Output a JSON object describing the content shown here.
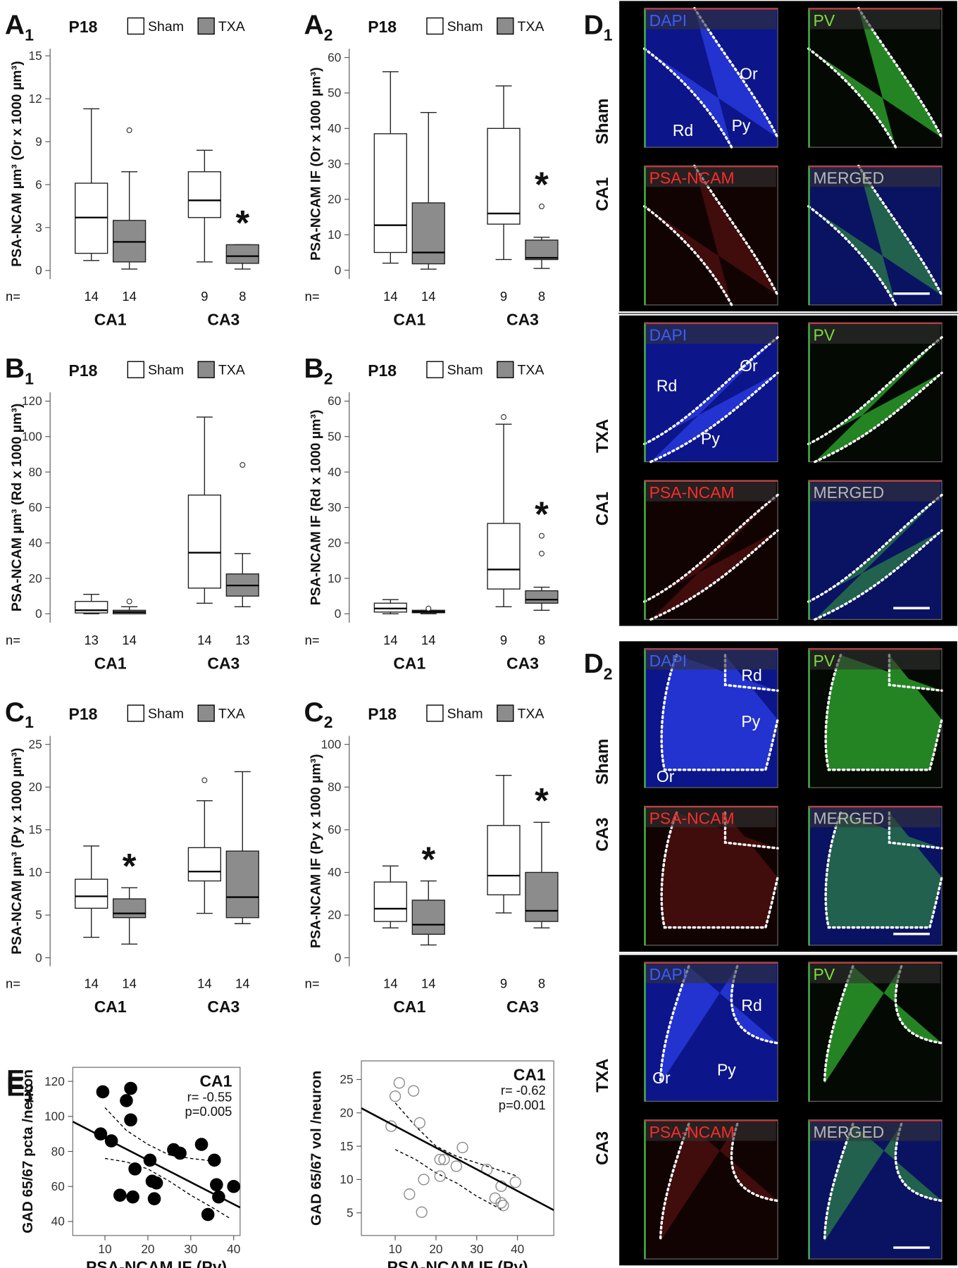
{
  "chart_data": [
    {
      "type": "box",
      "panel": [
        "A",
        "1"
      ],
      "timepoint": "P18",
      "ylabel": "PSA-NCAM µm³ (Or x 1000 µm³)",
      "ylim": [
        -0.6,
        15.5
      ],
      "yticks": [
        0,
        3,
        6,
        9,
        12,
        15
      ],
      "n_label": "n=",
      "categories": [
        "CA1",
        "CA3"
      ],
      "series": [
        {
          "name": "Sham",
          "color": "#ffffff",
          "n": [
            14,
            9
          ],
          "min": [
            0.7,
            0.6
          ],
          "q1": [
            1.2,
            3.7
          ],
          "median": [
            3.7,
            4.9
          ],
          "q3": [
            6.1,
            6.9
          ],
          "max": [
            11.3,
            8.4
          ],
          "outliers": [
            [],
            []
          ]
        },
        {
          "name": "TXA",
          "color": "#8c8c8c",
          "n": [
            14,
            8
          ],
          "min": [
            0.1,
            0.1
          ],
          "q1": [
            0.6,
            0.5
          ],
          "median": [
            2.0,
            1.0
          ],
          "q3": [
            3.5,
            1.8
          ],
          "max": [
            6.9,
            1.8
          ],
          "outliers": [
            [
              9.8
            ],
            []
          ],
          "significance": [
            null,
            "*"
          ]
        }
      ]
    },
    {
      "type": "box",
      "panel": [
        "A",
        "2"
      ],
      "timepoint": "P18",
      "ylabel": "PSA-NCAM IF (Or x 1000 µm³)",
      "ylim": [
        -2.5,
        62.5
      ],
      "yticks": [
        0,
        10,
        20,
        30,
        40,
        50,
        60
      ],
      "n_label": "n=",
      "categories": [
        "CA1",
        "CA3"
      ],
      "series": [
        {
          "name": "Sham",
          "color": "#ffffff",
          "n": [
            14,
            9
          ],
          "min": [
            2,
            3
          ],
          "q1": [
            5,
            13
          ],
          "median": [
            12.7,
            16
          ],
          "q3": [
            38.5,
            40
          ],
          "max": [
            56,
            52
          ],
          "outliers": [
            [],
            []
          ]
        },
        {
          "name": "TXA",
          "color": "#8c8c8c",
          "n": [
            14,
            8
          ],
          "min": [
            0.3,
            0.5
          ],
          "q1": [
            1.8,
            3
          ],
          "median": [
            5,
            3.5
          ],
          "q3": [
            19,
            8.5
          ],
          "max": [
            44.5,
            9.3
          ],
          "outliers": [
            [],
            [
              18
            ]
          ],
          "significance": [
            null,
            "*"
          ]
        }
      ]
    },
    {
      "type": "box",
      "panel": [
        "B",
        "1"
      ],
      "timepoint": "P18",
      "ylabel": "PSA-NCAM µm³ (Rd x 1000 µm³)",
      "ylim": [
        -5,
        125
      ],
      "yticks": [
        0,
        20,
        40,
        60,
        80,
        100,
        120
      ],
      "n_label": "n=",
      "categories": [
        "CA1",
        "CA3"
      ],
      "series": [
        {
          "name": "Sham",
          "color": "#ffffff",
          "n": [
            13,
            14
          ],
          "min": [
            0,
            6
          ],
          "q1": [
            0.5,
            14.5
          ],
          "median": [
            2,
            34.5
          ],
          "q3": [
            7,
            67
          ],
          "max": [
            11,
            111
          ],
          "outliers": [
            [],
            []
          ]
        },
        {
          "name": "TXA",
          "color": "#8c8c8c",
          "n": [
            14,
            13
          ],
          "min": [
            0,
            4
          ],
          "q1": [
            0,
            10
          ],
          "median": [
            1,
            16
          ],
          "q3": [
            2,
            22.5
          ],
          "max": [
            4,
            34
          ],
          "outliers": [
            [
              7
            ],
            [
              84
            ]
          ]
        }
      ]
    },
    {
      "type": "box",
      "panel": [
        "B",
        "2"
      ],
      "timepoint": "P18",
      "ylabel": "PSA-NCAM IF (Rd x 1000 µm³)",
      "ylim": [
        -2.5,
        62.5
      ],
      "yticks": [
        0,
        10,
        20,
        30,
        40,
        50,
        60
      ],
      "n_label": "n=",
      "categories": [
        "CA1",
        "CA3"
      ],
      "series": [
        {
          "name": "Sham",
          "color": "#ffffff",
          "n": [
            14,
            9
          ],
          "min": [
            0,
            2
          ],
          "q1": [
            0.5,
            7
          ],
          "median": [
            1.5,
            12.5
          ],
          "q3": [
            3,
            25.5
          ],
          "max": [
            4,
            53.5
          ],
          "outliers": [
            [],
            [
              55.5
            ]
          ]
        },
        {
          "name": "TXA",
          "color": "#8c8c8c",
          "n": [
            14,
            8
          ],
          "min": [
            0,
            1
          ],
          "q1": [
            0.3,
            3
          ],
          "median": [
            0.6,
            4
          ],
          "q3": [
            1,
            6.5
          ],
          "max": [
            1,
            7.5
          ],
          "outliers": [
            [
              1.5
            ],
            [
              22,
              17
            ]
          ],
          "significance": [
            null,
            "*"
          ]
        }
      ]
    },
    {
      "type": "box",
      "panel": [
        "C",
        "1"
      ],
      "timepoint": "P18",
      "ylabel": "PSA-NCAM µm³ (Py x 1000 µm³)",
      "ylim": [
        -1,
        26
      ],
      "yticks": [
        0,
        5,
        10,
        15,
        20,
        25
      ],
      "n_label": "n=",
      "categories": [
        "CA1",
        "CA3"
      ],
      "series": [
        {
          "name": "Sham",
          "color": "#ffffff",
          "n": [
            14,
            14
          ],
          "min": [
            2.4,
            5.2
          ],
          "q1": [
            5.8,
            9
          ],
          "median": [
            7.2,
            10.1
          ],
          "q3": [
            9.2,
            12.9
          ],
          "max": [
            13.1,
            18.4
          ],
          "outliers": [
            [],
            [
              20.8
            ]
          ]
        },
        {
          "name": "TXA",
          "color": "#8c8c8c",
          "n": [
            14,
            14
          ],
          "min": [
            1.6,
            4
          ],
          "q1": [
            4.7,
            4.7
          ],
          "median": [
            5.2,
            7.1
          ],
          "q3": [
            6.9,
            12.5
          ],
          "max": [
            8.2,
            21.8
          ],
          "outliers": [
            [],
            []
          ],
          "significance": [
            "*",
            null
          ]
        }
      ]
    },
    {
      "type": "box",
      "panel": [
        "C",
        "2"
      ],
      "timepoint": "P18",
      "ylabel": "PSA-NCAM IF (Py x 1000 µm³)",
      "ylim": [
        -4,
        104
      ],
      "yticks": [
        0,
        20,
        40,
        60,
        80,
        100
      ],
      "n_label": "n=",
      "categories": [
        "CA1",
        "CA3"
      ],
      "series": [
        {
          "name": "Sham",
          "color": "#ffffff",
          "n": [
            14,
            9
          ],
          "min": [
            14,
            21
          ],
          "q1": [
            17,
            29.5
          ],
          "median": [
            23,
            38.5
          ],
          "q3": [
            35.5,
            62
          ],
          "max": [
            43,
            85.5
          ],
          "outliers": [
            [],
            []
          ]
        },
        {
          "name": "TXA",
          "color": "#8c8c8c",
          "n": [
            14,
            8
          ],
          "min": [
            6,
            14
          ],
          "q1": [
            11,
            17
          ],
          "median": [
            15.5,
            22
          ],
          "q3": [
            27,
            40
          ],
          "max": [
            36,
            63.5
          ],
          "outliers": [
            [],
            []
          ],
          "significance": [
            "*",
            "*"
          ]
        }
      ]
    },
    {
      "type": "scatter",
      "panel": [
        "E",
        "1"
      ],
      "xlabel": "PSA-NCAM IF (Py)",
      "ylabel": "GAD 65/67 pcta /neuron",
      "annotations": [
        "CA1",
        "r= -0.55",
        "p=0.005"
      ],
      "xlim": [
        2.5,
        41.5
      ],
      "xticks": [
        10,
        20,
        30,
        40
      ],
      "ylim": [
        32,
        128
      ],
      "yticks": [
        40,
        60,
        80,
        100,
        120
      ],
      "marker": "filled",
      "color": "#000000",
      "x": [
        9.5,
        15,
        16,
        16,
        9,
        11.5,
        26,
        27.5,
        32.5,
        20.5,
        17,
        35.5,
        13.5,
        16.5,
        21,
        22,
        21.5,
        36,
        40,
        36.5,
        34
      ],
      "y": [
        114,
        109,
        116,
        98,
        90,
        86,
        81,
        79,
        84,
        75,
        70,
        75,
        55,
        54,
        63,
        62,
        53,
        61,
        60,
        54,
        44
      ],
      "fit": {
        "x": [
          2.5,
          41.5
        ],
        "y": [
          97,
          48
        ]
      },
      "ci_upper": {
        "x": [
          10,
          15,
          20,
          25,
          30,
          37
        ],
        "y": [
          105,
          92,
          84,
          78,
          76,
          74
        ]
      },
      "ci_lower": {
        "x": [
          10,
          15,
          20,
          25,
          30,
          35,
          39
        ],
        "y": [
          76,
          74,
          70,
          63,
          55,
          48,
          42
        ]
      }
    },
    {
      "type": "scatter",
      "panel": [
        "E",
        "2"
      ],
      "xlabel": "PSA-NCAM IF (Py)",
      "ylabel": "GAD 65/67 vol /neuron",
      "annotations": [
        "CA1",
        "r= -0.62",
        "p=0.001"
      ],
      "xlim": [
        1.7,
        48.9
      ],
      "xticks": [
        10,
        20,
        30,
        40
      ],
      "ylim": [
        1.6,
        27.8
      ],
      "yticks": [
        5,
        10,
        15,
        20,
        25
      ],
      "marker": "open",
      "color": "#8a8a8a",
      "x": [
        11,
        10,
        14.5,
        16,
        9,
        26.5,
        21,
        22,
        25,
        32.5,
        21,
        17,
        39.5,
        36,
        13.5,
        34.5,
        36,
        36.5,
        16.5
      ],
      "y": [
        24.5,
        22.5,
        23.3,
        18.5,
        18,
        14.8,
        13,
        13,
        12,
        11.5,
        10.5,
        10,
        9.6,
        9,
        7.8,
        7.2,
        6.5,
        6.1,
        5.1
      ],
      "fit": {
        "x": [
          1.7,
          48.9
        ],
        "y": [
          20.7,
          5.4
        ]
      },
      "ci_upper": {
        "x": [
          10,
          15,
          20,
          25,
          30,
          35,
          40
        ],
        "y": [
          21.5,
          18,
          15,
          13.5,
          12.5,
          11.5,
          10.5
        ]
      },
      "ci_lower": {
        "x": [
          10,
          15,
          20,
          25,
          30,
          36
        ],
        "y": [
          14.5,
          13,
          11,
          9.5,
          7.5,
          5.5
        ]
      }
    }
  ],
  "image_panels": [
    {
      "panel": [
        "D",
        "1"
      ],
      "groups": [
        {
          "condition": "Sham",
          "region": "CA1",
          "tiles": [
            {
              "stain": "DAPI",
              "regions": [
                "Or",
                "Py",
                "Rd"
              ]
            },
            {
              "stain": "PV"
            },
            {
              "stain": "PSA-NCAM"
            },
            {
              "stain": "MERGED"
            }
          ]
        },
        {
          "condition": "TXA",
          "region": "CA1",
          "tiles": [
            {
              "stain": "DAPI",
              "regions": [
                "Or",
                "Py",
                "Rd"
              ]
            },
            {
              "stain": "PV"
            },
            {
              "stain": "PSA-NCAM"
            },
            {
              "stain": "MERGED"
            }
          ]
        }
      ]
    },
    {
      "panel": [
        "D",
        "2"
      ],
      "groups": [
        {
          "condition": "Sham",
          "region": "CA3",
          "tiles": [
            {
              "stain": "DAPI",
              "regions": [
                "Rd",
                "Py",
                "Or"
              ]
            },
            {
              "stain": "PV"
            },
            {
              "stain": "PSA-NCAM"
            },
            {
              "stain": "MERGED"
            }
          ]
        },
        {
          "condition": "TXA",
          "region": "CA3",
          "tiles": [
            {
              "stain": "DAPI",
              "regions": [
                "Rd",
                "Py",
                "Or"
              ]
            },
            {
              "stain": "PV"
            },
            {
              "stain": "PSA-NCAM"
            },
            {
              "stain": "MERGED"
            }
          ]
        }
      ]
    }
  ]
}
